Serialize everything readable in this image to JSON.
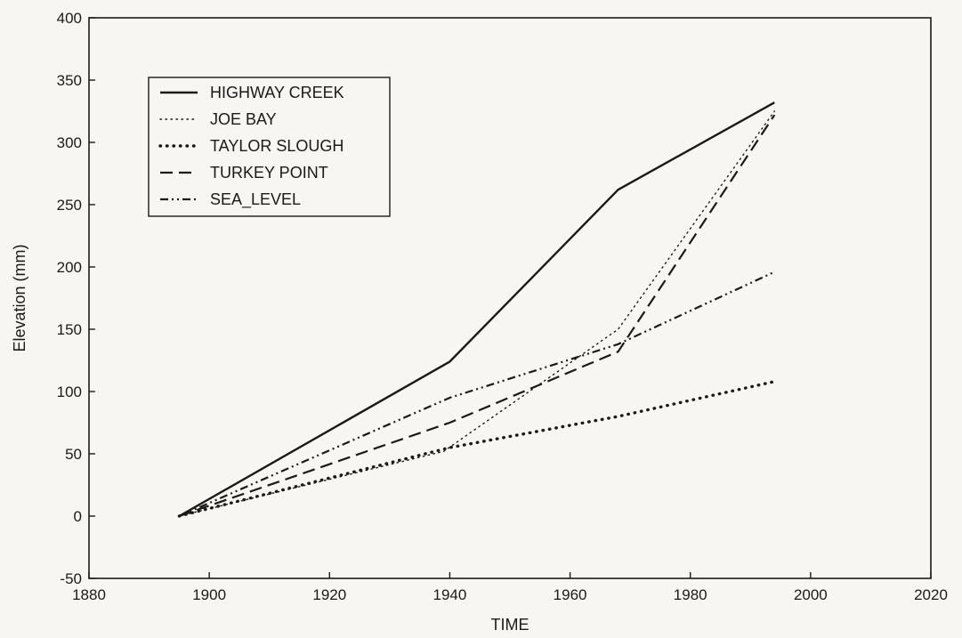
{
  "chart_data": {
    "type": "line",
    "title": "",
    "xlabel": "TIME",
    "ylabel": "Elevation (mm)",
    "xlim": [
      1880,
      2020
    ],
    "ylim": [
      -50,
      400
    ],
    "xticks": [
      1880,
      1900,
      1920,
      1940,
      1960,
      1980,
      2000,
      2020
    ],
    "yticks": [
      -50,
      0,
      50,
      100,
      150,
      200,
      250,
      300,
      350,
      400
    ],
    "grid": false,
    "legend_position": "top-left",
    "series": [
      {
        "name": "HIGHWAY CREEK",
        "style": "solid",
        "x": [
          1895,
          1940,
          1968,
          1994
        ],
        "y": [
          0,
          124,
          262,
          332
        ]
      },
      {
        "name": "JOE BAY",
        "style": "dotted",
        "x": [
          1895,
          1939,
          1968,
          1994
        ],
        "y": [
          0,
          52,
          150,
          325
        ]
      },
      {
        "name": "TAYLOR SLOUGH",
        "style": "dotted-heavy",
        "x": [
          1895,
          1940,
          1968,
          1994
        ],
        "y": [
          0,
          55,
          80,
          108
        ]
      },
      {
        "name": "TURKEY POINT",
        "style": "dashed",
        "x": [
          1895,
          1940,
          1968,
          1994
        ],
        "y": [
          0,
          75,
          132,
          322
        ]
      },
      {
        "name": "SEA_LEVEL",
        "style": "dash-dot-dot",
        "x": [
          1895,
          1940,
          1968,
          1994
        ],
        "y": [
          0,
          95,
          138,
          196
        ]
      }
    ]
  }
}
